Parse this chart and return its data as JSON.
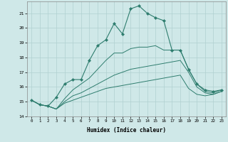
{
  "xlabel": "Humidex (Indice chaleur)",
  "background_color": "#cfe8e8",
  "grid_color": "#b0d0d0",
  "line_color": "#2e7d6e",
  "xlim": [
    -0.5,
    23.5
  ],
  "ylim": [
    14,
    21.8
  ],
  "yticks": [
    14,
    15,
    16,
    17,
    18,
    19,
    20,
    21
  ],
  "xticks": [
    0,
    1,
    2,
    3,
    4,
    5,
    6,
    7,
    8,
    9,
    10,
    11,
    12,
    13,
    14,
    15,
    16,
    17,
    18,
    19,
    20,
    21,
    22,
    23
  ],
  "series": [
    {
      "x": [
        0,
        1,
        2,
        3,
        4,
        5,
        6,
        7,
        8,
        9,
        10,
        11,
        12,
        13,
        14,
        15,
        16,
        17,
        18,
        19,
        20,
        21,
        22,
        23
      ],
      "y": [
        15.1,
        14.8,
        14.7,
        15.3,
        16.2,
        16.5,
        16.5,
        17.8,
        18.8,
        19.2,
        20.3,
        19.6,
        21.3,
        21.5,
        21.0,
        20.7,
        20.5,
        18.5,
        18.5,
        17.2,
        16.2,
        15.8,
        15.7,
        15.8
      ],
      "has_marker": true
    },
    {
      "x": [
        0,
        1,
        2,
        3,
        4,
        5,
        6,
        7,
        8,
        9,
        10,
        11,
        12,
        13,
        14,
        15,
        16,
        17,
        18,
        19,
        20,
        21,
        22,
        23
      ],
      "y": [
        15.1,
        14.8,
        14.7,
        14.5,
        15.2,
        15.8,
        16.2,
        16.6,
        17.2,
        17.8,
        18.3,
        18.3,
        18.6,
        18.7,
        18.7,
        18.8,
        18.5,
        18.5,
        18.5,
        17.2,
        16.2,
        15.7,
        15.6,
        15.8
      ],
      "has_marker": false
    },
    {
      "x": [
        0,
        1,
        2,
        3,
        4,
        5,
        6,
        7,
        8,
        9,
        10,
        11,
        12,
        13,
        14,
        15,
        16,
        17,
        18,
        19,
        20,
        21,
        22,
        23
      ],
      "y": [
        15.1,
        14.8,
        14.7,
        14.5,
        15.0,
        15.4,
        15.6,
        15.9,
        16.2,
        16.5,
        16.8,
        17.0,
        17.2,
        17.3,
        17.4,
        17.5,
        17.6,
        17.7,
        17.8,
        17.0,
        16.0,
        15.6,
        15.5,
        15.7
      ],
      "has_marker": false
    },
    {
      "x": [
        0,
        1,
        2,
        3,
        4,
        5,
        6,
        7,
        8,
        9,
        10,
        11,
        12,
        13,
        14,
        15,
        16,
        17,
        18,
        19,
        20,
        21,
        22,
        23
      ],
      "y": [
        15.1,
        14.8,
        14.7,
        14.5,
        14.9,
        15.1,
        15.3,
        15.5,
        15.7,
        15.9,
        16.0,
        16.1,
        16.2,
        16.3,
        16.4,
        16.5,
        16.6,
        16.7,
        16.8,
        15.9,
        15.5,
        15.4,
        15.5,
        15.7
      ],
      "has_marker": false
    }
  ]
}
